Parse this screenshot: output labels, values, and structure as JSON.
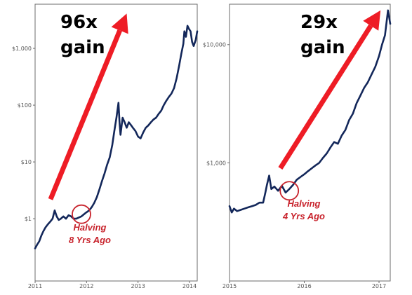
{
  "colors": {
    "series": "#13275a",
    "arrow": "#ee1c25",
    "annotation": "#c8232c",
    "frame": "#6b6b6b"
  },
  "chart_data": [
    {
      "type": "line",
      "yscale": "log",
      "title": "",
      "xlabel": "",
      "ylabel": "",
      "grid": false,
      "xlim": [
        2011.0,
        2014.15
      ],
      "ylim": [
        0.08,
        6000
      ],
      "x_ticks": [
        {
          "value": 2011,
          "label": "2011"
        },
        {
          "value": 2012,
          "label": "2012"
        },
        {
          "value": 2013,
          "label": "2013"
        },
        {
          "value": 2014,
          "label": "2014"
        }
      ],
      "y_ticks": [
        {
          "value": 1,
          "label": "$1"
        },
        {
          "value": 10,
          "label": "$10"
        },
        {
          "value": 100,
          "label": "$100"
        },
        {
          "value": 1000,
          "label": "$1,000"
        }
      ],
      "gain_lines": [
        "96x",
        "gain"
      ],
      "annotation_lines": [
        "Halving",
        "8 Yrs Ago"
      ],
      "halving_point": {
        "x": 2011.9,
        "y": 1.2
      },
      "arrow": {
        "from": {
          "x": 2011.3,
          "y": 2.2
        },
        "to": {
          "x": 2012.78,
          "y": 4100
        }
      },
      "series": [
        {
          "x": [
            2011.0,
            2011.04,
            2011.08,
            2011.12,
            2011.16,
            2011.2,
            2011.25,
            2011.3,
            2011.34,
            2011.38,
            2011.42,
            2011.46,
            2011.5,
            2011.55,
            2011.6,
            2011.65,
            2011.7,
            2011.75,
            2011.8,
            2011.85,
            2011.9,
            2011.95,
            2012.0,
            2012.05,
            2012.1,
            2012.15,
            2012.2,
            2012.25,
            2012.3,
            2012.35,
            2012.4,
            2012.45,
            2012.5,
            2012.54,
            2012.58,
            2012.62,
            2012.64,
            2012.66,
            2012.7,
            2012.74,
            2012.78,
            2012.82,
            2012.86,
            2012.9,
            2012.95,
            2013.0,
            2013.05,
            2013.1,
            2013.15,
            2013.2,
            2013.25,
            2013.3,
            2013.35,
            2013.4,
            2013.45,
            2013.5,
            2013.55,
            2013.6,
            2013.65,
            2013.7,
            2013.75,
            2013.8,
            2013.84,
            2013.88,
            2013.9,
            2013.93,
            2013.96,
            2013.99,
            2014.02,
            2014.05,
            2014.08,
            2014.12,
            2014.15
          ],
          "y": [
            0.3,
            0.35,
            0.4,
            0.5,
            0.6,
            0.7,
            0.8,
            0.9,
            1.0,
            1.4,
            1.1,
            0.95,
            1.0,
            1.1,
            1.0,
            1.15,
            1.1,
            1.0,
            1.0,
            1.05,
            1.1,
            1.2,
            1.3,
            1.4,
            1.6,
            1.9,
            2.4,
            3.3,
            4.6,
            6.3,
            9.0,
            12.0,
            20.0,
            35.0,
            60.0,
            110.0,
            50.0,
            30.0,
            60.0,
            50.0,
            40.0,
            50.0,
            45.0,
            40.0,
            35.0,
            28.0,
            26.0,
            33.0,
            40.0,
            44.0,
            50.0,
            56.0,
            60.0,
            70.0,
            80.0,
            100.0,
            120.0,
            140.0,
            160.0,
            200.0,
            300.0,
            500.0,
            800.0,
            1200.0,
            2000.0,
            1600.0,
            2500.0,
            2200.0,
            2000.0,
            1300.0,
            1100.0,
            1400.0,
            2000.0
          ]
        }
      ]
    },
    {
      "type": "line",
      "yscale": "log",
      "title": "",
      "xlabel": "",
      "ylabel": "",
      "grid": false,
      "xlim": [
        2015.0,
        2017.15
      ],
      "ylim": [
        100,
        22000
      ],
      "x_ticks": [
        {
          "value": 2015,
          "label": "2015"
        },
        {
          "value": 2016,
          "label": "2016"
        },
        {
          "value": 2017,
          "label": "2017"
        }
      ],
      "y_ticks": [
        {
          "value": 1000,
          "label": "$1,000"
        },
        {
          "value": 10000,
          "label": "$10,000"
        }
      ],
      "gain_lines": [
        "29x",
        "gain"
      ],
      "annotation_lines": [
        "Halving",
        "4 Yrs Ago"
      ],
      "halving_point": {
        "x": 2015.8,
        "y": 580
      },
      "arrow": {
        "from": {
          "x": 2015.68,
          "y": 900
        },
        "to": {
          "x": 2017.02,
          "y": 19500
        }
      },
      "series": [
        {
          "x": [
            2015.0,
            2015.03,
            2015.06,
            2015.1,
            2015.15,
            2015.2,
            2015.25,
            2015.3,
            2015.35,
            2015.4,
            2015.45,
            2015.48,
            2015.5,
            2015.53,
            2015.56,
            2015.6,
            2015.65,
            2015.7,
            2015.75,
            2015.8,
            2015.85,
            2015.9,
            2015.95,
            2016.0,
            2016.05,
            2016.1,
            2016.15,
            2016.2,
            2016.25,
            2016.3,
            2016.35,
            2016.4,
            2016.45,
            2016.5,
            2016.55,
            2016.6,
            2016.65,
            2016.7,
            2016.75,
            2016.8,
            2016.85,
            2016.9,
            2016.95,
            2017.0,
            2017.04,
            2017.08,
            2017.12,
            2017.15
          ],
          "y": [
            430,
            380,
            410,
            390,
            400,
            410,
            420,
            430,
            440,
            460,
            460,
            560,
            650,
            780,
            600,
            630,
            580,
            640,
            560,
            600,
            650,
            720,
            760,
            800,
            850,
            900,
            950,
            1000,
            1100,
            1200,
            1350,
            1500,
            1450,
            1700,
            1900,
            2300,
            2600,
            3200,
            3700,
            4300,
            4800,
            5600,
            6500,
            8000,
            10000,
            12000,
            19500,
            15000
          ]
        }
      ]
    }
  ]
}
